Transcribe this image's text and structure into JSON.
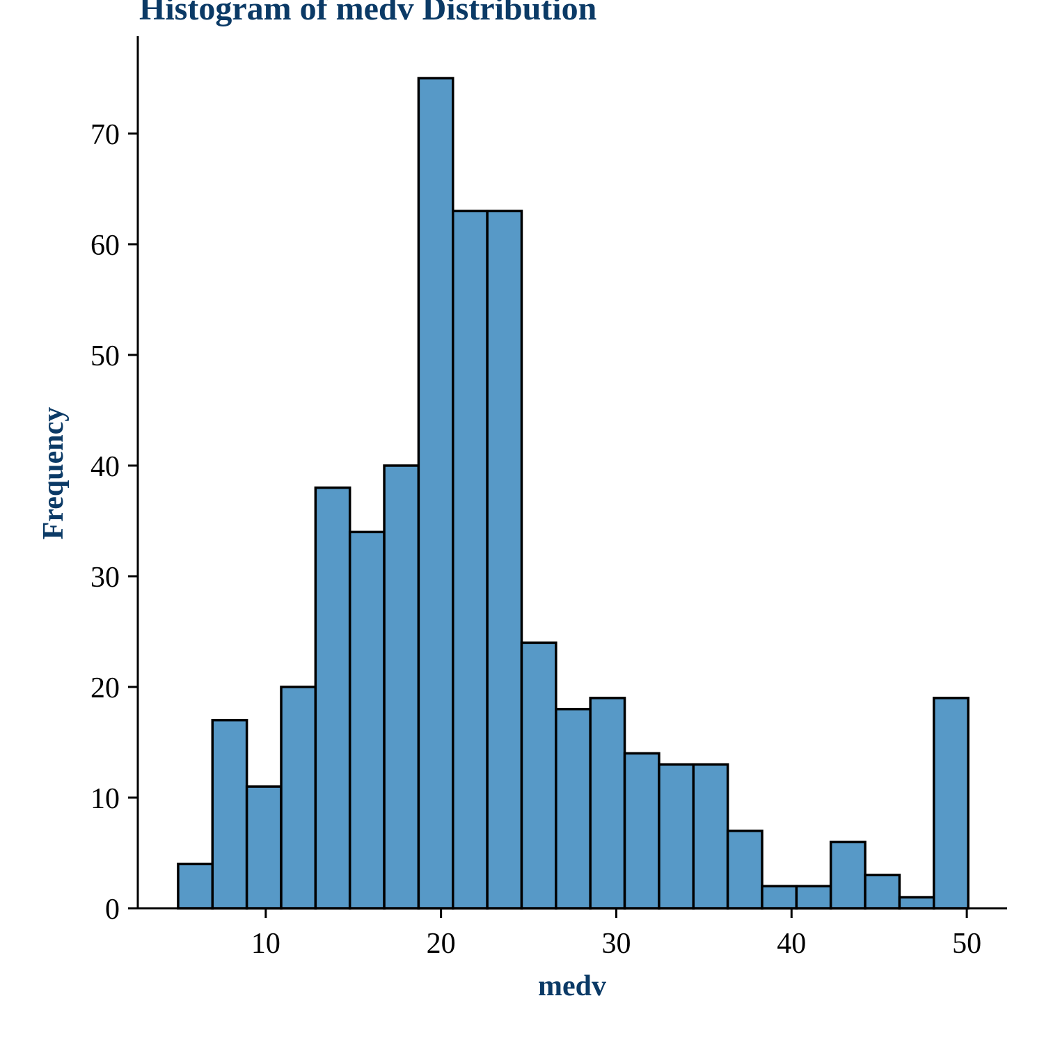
{
  "chart_data": {
    "type": "bar",
    "title": "Histogram of medv Distribution",
    "xlabel": "medv",
    "ylabel": "Frequency",
    "bins": [
      {
        "start": 5.0,
        "end": 6.96,
        "count": 4
      },
      {
        "start": 6.96,
        "end": 8.92,
        "count": 17
      },
      {
        "start": 8.92,
        "end": 10.88,
        "count": 11
      },
      {
        "start": 10.88,
        "end": 12.84,
        "count": 20
      },
      {
        "start": 12.84,
        "end": 14.8,
        "count": 38
      },
      {
        "start": 14.8,
        "end": 16.76,
        "count": 34
      },
      {
        "start": 16.76,
        "end": 18.72,
        "count": 40
      },
      {
        "start": 18.72,
        "end": 20.68,
        "count": 75
      },
      {
        "start": 20.68,
        "end": 22.64,
        "count": 63
      },
      {
        "start": 22.64,
        "end": 24.6,
        "count": 63
      },
      {
        "start": 24.6,
        "end": 26.56,
        "count": 24
      },
      {
        "start": 26.56,
        "end": 28.52,
        "count": 18
      },
      {
        "start": 28.52,
        "end": 30.48,
        "count": 19
      },
      {
        "start": 30.48,
        "end": 32.44,
        "count": 14
      },
      {
        "start": 32.44,
        "end": 34.4,
        "count": 13
      },
      {
        "start": 34.4,
        "end": 36.36,
        "count": 13
      },
      {
        "start": 36.36,
        "end": 38.32,
        "count": 7
      },
      {
        "start": 38.32,
        "end": 40.28,
        "count": 2
      },
      {
        "start": 40.28,
        "end": 42.24,
        "count": 2
      },
      {
        "start": 42.24,
        "end": 44.2,
        "count": 6
      },
      {
        "start": 44.2,
        "end": 46.16,
        "count": 3
      },
      {
        "start": 46.16,
        "end": 48.12,
        "count": 1
      },
      {
        "start": 48.12,
        "end": 50.08,
        "count": 19
      }
    ],
    "xlim": [
      2.7,
      52.3
    ],
    "ylim": [
      0,
      78.8
    ],
    "xticks": [
      10,
      20,
      30,
      40,
      50
    ],
    "yticks": [
      0,
      10,
      20,
      30,
      40,
      50,
      60,
      70
    ],
    "grid": false,
    "legend": "none",
    "colors": {
      "bar_fill": "#5799c7",
      "bar_edge": "#000000",
      "title": "#0b3a66",
      "axis_title": "#0b3a66",
      "tick_text": "#000000"
    }
  }
}
